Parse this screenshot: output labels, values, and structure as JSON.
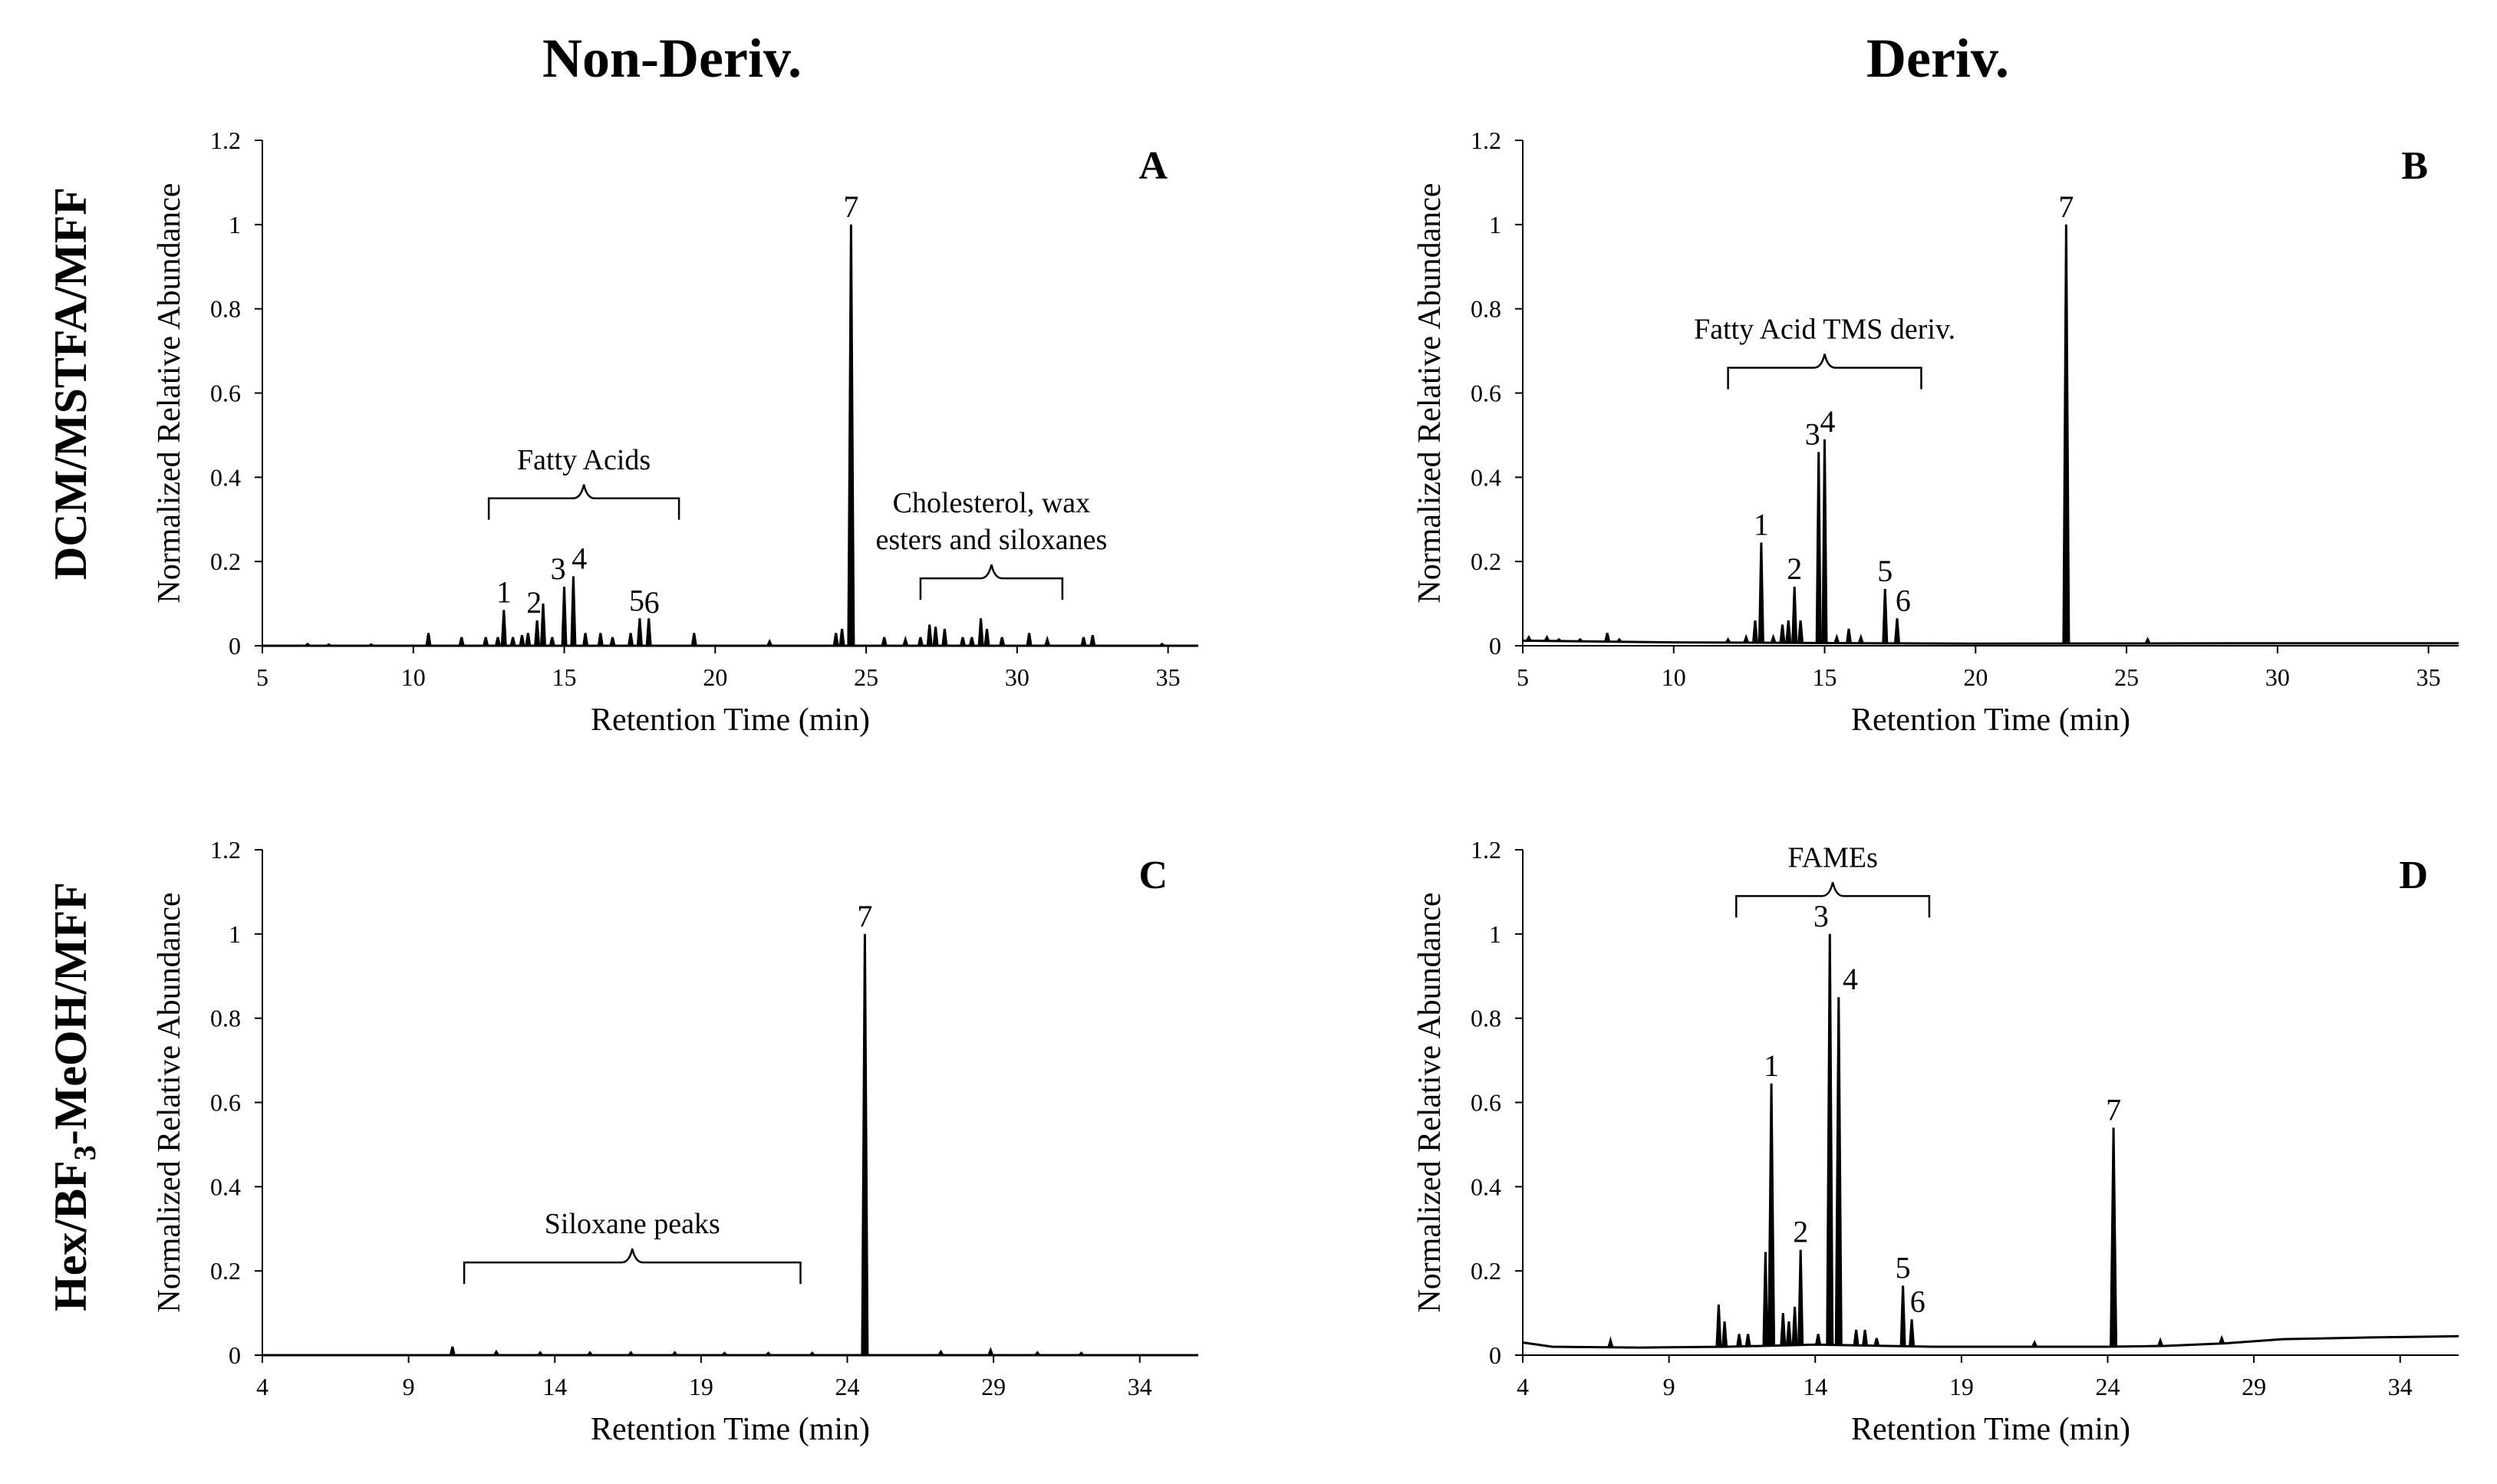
{
  "figure": {
    "col_titles": [
      "Non-Deriv.",
      "Deriv."
    ],
    "row_titles": {
      "row1": "DCM/MSTFA/MFF",
      "row2_prefix": "Hex/BF",
      "row2_sub": "3",
      "row2_suffix": "-MeOH/MFF"
    }
  },
  "colors": {
    "trace": "#000000",
    "axis": "#000000",
    "background": "#ffffff"
  },
  "chart_data": [
    {
      "id": "A",
      "type": "line",
      "panel_letter": "A",
      "xlabel": "Retention Time (min)",
      "ylabel": "Normalized Relative Abundance",
      "xlim": [
        5,
        36
      ],
      "xticks": [
        5,
        10,
        15,
        20,
        25,
        30,
        35
      ],
      "ylim": [
        0,
        1.2
      ],
      "yticks": [
        "0",
        "0.2",
        "0.4",
        "0.6",
        "0.8",
        "1",
        "1.2"
      ],
      "baseline": [
        [
          5,
          0.0
        ],
        [
          36,
          0.0
        ]
      ],
      "peaks": [
        {
          "x": 6.5,
          "y": 0.004
        },
        {
          "x": 7.2,
          "y": 0.003
        },
        {
          "x": 8.6,
          "y": 0.003
        },
        {
          "x": 10.5,
          "y": 0.03
        },
        {
          "x": 11.6,
          "y": 0.02
        },
        {
          "x": 12.4,
          "y": 0.02
        },
        {
          "x": 12.8,
          "y": 0.02
        },
        {
          "x": 13.0,
          "y": 0.085
        },
        {
          "x": 13.3,
          "y": 0.02
        },
        {
          "x": 13.6,
          "y": 0.025
        },
        {
          "x": 13.8,
          "y": 0.03
        },
        {
          "x": 14.1,
          "y": 0.06
        },
        {
          "x": 14.3,
          "y": 0.1
        },
        {
          "x": 14.6,
          "y": 0.02
        },
        {
          "x": 15.0,
          "y": 0.14
        },
        {
          "x": 15.3,
          "y": 0.165
        },
        {
          "x": 15.7,
          "y": 0.03
        },
        {
          "x": 16.2,
          "y": 0.03
        },
        {
          "x": 16.6,
          "y": 0.02
        },
        {
          "x": 17.2,
          "y": 0.03
        },
        {
          "x": 17.5,
          "y": 0.065
        },
        {
          "x": 17.8,
          "y": 0.065
        },
        {
          "x": 19.3,
          "y": 0.03
        },
        {
          "x": 21.8,
          "y": 0.01
        },
        {
          "x": 24.0,
          "y": 0.03
        },
        {
          "x": 24.2,
          "y": 0.04
        },
        {
          "x": 24.5,
          "y": 1.0
        },
        {
          "x": 25.6,
          "y": 0.02
        },
        {
          "x": 26.3,
          "y": 0.015
        },
        {
          "x": 26.8,
          "y": 0.02
        },
        {
          "x": 27.1,
          "y": 0.05
        },
        {
          "x": 27.3,
          "y": 0.045
        },
        {
          "x": 27.6,
          "y": 0.04
        },
        {
          "x": 28.2,
          "y": 0.02
        },
        {
          "x": 28.5,
          "y": 0.02
        },
        {
          "x": 28.8,
          "y": 0.065
        },
        {
          "x": 29.0,
          "y": 0.04
        },
        {
          "x": 29.5,
          "y": 0.02
        },
        {
          "x": 30.4,
          "y": 0.03
        },
        {
          "x": 31.0,
          "y": 0.015
        },
        {
          "x": 32.2,
          "y": 0.02
        },
        {
          "x": 32.5,
          "y": 0.025
        },
        {
          "x": 34.8,
          "y": 0.004
        }
      ],
      "peak_labels": [
        {
          "text": "1",
          "x": 13.0,
          "y": 0.085
        },
        {
          "text": "2",
          "x": 14.0,
          "y": 0.06
        },
        {
          "text": "3",
          "x": 14.8,
          "y": 0.14
        },
        {
          "text": "4",
          "x": 15.5,
          "y": 0.165
        },
        {
          "text": "5",
          "x": 17.4,
          "y": 0.065
        },
        {
          "text": "6",
          "x": 17.9,
          "y": 0.06
        },
        {
          "text": "7",
          "x": 24.5,
          "y": 1.0
        }
      ],
      "brackets": [
        {
          "text": "Fatty Acids",
          "lines": [
            "Fatty Acids"
          ],
          "x1": 12.5,
          "x2": 18.8,
          "y": 0.35
        },
        {
          "text": "Cholesterol, wax esters and siloxanes",
          "lines": [
            "Cholesterol, wax",
            "esters and siloxanes"
          ],
          "x1": 26.8,
          "x2": 31.5,
          "y": 0.16
        }
      ]
    },
    {
      "id": "B",
      "type": "line",
      "panel_letter": "B",
      "xlabel": "Retention Time (min)",
      "ylabel": "Normalized Relative Abundance",
      "xlim": [
        5,
        36
      ],
      "xticks": [
        5,
        10,
        15,
        20,
        25,
        30,
        35
      ],
      "ylim": [
        0,
        1.2
      ],
      "yticks": [
        "0",
        "0.2",
        "0.4",
        "0.6",
        "0.8",
        "1",
        "1.2"
      ],
      "baseline": [
        [
          5,
          0.012
        ],
        [
          10,
          0.008
        ],
        [
          20,
          0.005
        ],
        [
          30,
          0.006
        ],
        [
          36,
          0.006
        ]
      ],
      "peaks": [
        {
          "x": 5.2,
          "y": 0.02
        },
        {
          "x": 5.8,
          "y": 0.02
        },
        {
          "x": 6.2,
          "y": 0.015
        },
        {
          "x": 6.9,
          "y": 0.015
        },
        {
          "x": 7.8,
          "y": 0.03
        },
        {
          "x": 8.2,
          "y": 0.015
        },
        {
          "x": 11.8,
          "y": 0.015
        },
        {
          "x": 12.4,
          "y": 0.02
        },
        {
          "x": 12.7,
          "y": 0.06
        },
        {
          "x": 12.9,
          "y": 0.245
        },
        {
          "x": 13.3,
          "y": 0.02
        },
        {
          "x": 13.6,
          "y": 0.05
        },
        {
          "x": 13.8,
          "y": 0.06
        },
        {
          "x": 14.0,
          "y": 0.14
        },
        {
          "x": 14.2,
          "y": 0.06
        },
        {
          "x": 14.8,
          "y": 0.46
        },
        {
          "x": 15.0,
          "y": 0.49
        },
        {
          "x": 15.4,
          "y": 0.02
        },
        {
          "x": 15.8,
          "y": 0.04
        },
        {
          "x": 16.2,
          "y": 0.02
        },
        {
          "x": 17.0,
          "y": 0.135
        },
        {
          "x": 17.4,
          "y": 0.065
        },
        {
          "x": 23.0,
          "y": 1.0
        },
        {
          "x": 25.7,
          "y": 0.015
        }
      ],
      "peak_labels": [
        {
          "text": "1",
          "x": 12.9,
          "y": 0.245
        },
        {
          "text": "2",
          "x": 14.0,
          "y": 0.14
        },
        {
          "text": "3",
          "x": 14.6,
          "y": 0.46
        },
        {
          "text": "4",
          "x": 15.1,
          "y": 0.49
        },
        {
          "text": "5",
          "x": 17.0,
          "y": 0.135
        },
        {
          "text": "6",
          "x": 17.6,
          "y": 0.065
        },
        {
          "text": "7",
          "x": 23.0,
          "y": 1.0
        }
      ],
      "brackets": [
        {
          "text": "Fatty Acid TMS deriv.",
          "lines": [
            "Fatty Acid TMS deriv."
          ],
          "x1": 11.8,
          "x2": 18.2,
          "y": 0.66
        }
      ]
    },
    {
      "id": "C",
      "type": "line",
      "panel_letter": "C",
      "xlabel": "Retention Time (min)",
      "ylabel": "Normalized Relative Abundance",
      "xlim": [
        4,
        36
      ],
      "xticks": [
        4,
        9,
        14,
        19,
        24,
        29,
        34
      ],
      "ylim": [
        0,
        1.2
      ],
      "yticks": [
        "0",
        "0.2",
        "0.4",
        "0.6",
        "0.8",
        "1",
        "1.2"
      ],
      "baseline": [
        [
          4,
          0.0
        ],
        [
          36,
          0.0
        ]
      ],
      "peaks": [
        {
          "x": 10.5,
          "y": 0.02
        },
        {
          "x": 12.0,
          "y": 0.008
        },
        {
          "x": 13.5,
          "y": 0.006
        },
        {
          "x": 15.2,
          "y": 0.006
        },
        {
          "x": 16.6,
          "y": 0.006
        },
        {
          "x": 18.1,
          "y": 0.006
        },
        {
          "x": 19.8,
          "y": 0.005
        },
        {
          "x": 21.3,
          "y": 0.005
        },
        {
          "x": 22.8,
          "y": 0.005
        },
        {
          "x": 24.6,
          "y": 1.0
        },
        {
          "x": 27.2,
          "y": 0.008
        },
        {
          "x": 28.9,
          "y": 0.012
        },
        {
          "x": 30.5,
          "y": 0.006
        },
        {
          "x": 32.0,
          "y": 0.005
        }
      ],
      "peak_labels": [
        {
          "text": "7",
          "x": 24.6,
          "y": 1.0
        }
      ],
      "brackets": [
        {
          "text": "Siloxane peaks",
          "lines": [
            "Siloxane peaks"
          ],
          "x1": 10.9,
          "x2": 22.4,
          "y": 0.22
        }
      ]
    },
    {
      "id": "D",
      "type": "line",
      "panel_letter": "D",
      "xlabel": "Retention Time (min)",
      "ylabel": "Normalized Relative Abundance",
      "xlim": [
        4,
        36
      ],
      "xticks": [
        4,
        9,
        14,
        19,
        24,
        29,
        34
      ],
      "ylim": [
        0,
        1.2
      ],
      "yticks": [
        "0",
        "0.2",
        "0.4",
        "0.6",
        "0.8",
        "1",
        "1.2"
      ],
      "baseline": [
        [
          4,
          0.03
        ],
        [
          5,
          0.02
        ],
        [
          8,
          0.018
        ],
        [
          11,
          0.02
        ],
        [
          14,
          0.025
        ],
        [
          18,
          0.02
        ],
        [
          24,
          0.02
        ],
        [
          26,
          0.022
        ],
        [
          28,
          0.028
        ],
        [
          30,
          0.038
        ],
        [
          33,
          0.042
        ],
        [
          36,
          0.045
        ]
      ],
      "peaks": [
        {
          "x": 7.0,
          "y": 0.035
        },
        {
          "x": 10.7,
          "y": 0.12
        },
        {
          "x": 10.9,
          "y": 0.08
        },
        {
          "x": 11.4,
          "y": 0.05
        },
        {
          "x": 11.7,
          "y": 0.05
        },
        {
          "x": 12.3,
          "y": 0.245
        },
        {
          "x": 12.5,
          "y": 0.645
        },
        {
          "x": 12.9,
          "y": 0.1
        },
        {
          "x": 13.1,
          "y": 0.08
        },
        {
          "x": 13.3,
          "y": 0.115
        },
        {
          "x": 13.5,
          "y": 0.25
        },
        {
          "x": 14.1,
          "y": 0.05
        },
        {
          "x": 14.5,
          "y": 1.0
        },
        {
          "x": 14.8,
          "y": 0.85
        },
        {
          "x": 15.4,
          "y": 0.06
        },
        {
          "x": 15.7,
          "y": 0.06
        },
        {
          "x": 16.1,
          "y": 0.04
        },
        {
          "x": 17.0,
          "y": 0.165
        },
        {
          "x": 17.3,
          "y": 0.085
        },
        {
          "x": 21.5,
          "y": 0.03
        },
        {
          "x": 24.2,
          "y": 0.54
        },
        {
          "x": 25.8,
          "y": 0.035
        },
        {
          "x": 27.9,
          "y": 0.04
        }
      ],
      "peak_labels": [
        {
          "text": "1",
          "x": 12.5,
          "y": 0.645
        },
        {
          "text": "2",
          "x": 13.5,
          "y": 0.25
        },
        {
          "text": "3",
          "x": 14.2,
          "y": 1.0
        },
        {
          "text": "4",
          "x": 15.2,
          "y": 0.85
        },
        {
          "text": "5",
          "x": 17.0,
          "y": 0.165
        },
        {
          "text": "6",
          "x": 17.5,
          "y": 0.085
        },
        {
          "text": "7",
          "x": 24.2,
          "y": 0.54
        }
      ],
      "brackets": [
        {
          "text": "FAMEs",
          "lines": [
            "FAMEs"
          ],
          "x1": 11.3,
          "x2": 17.9,
          "y": 1.09
        }
      ]
    }
  ]
}
